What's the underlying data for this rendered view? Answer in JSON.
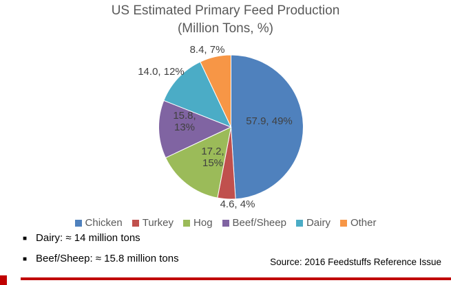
{
  "slide": {
    "title": "US Estimated Primary Feed Production",
    "subtitle": "(Million Tons, %)",
    "source": "Source: 2016 Feedstuffs Reference Issue",
    "accent_color": "#C00000"
  },
  "notes": [
    {
      "text": "Dairy: ≈ 14 million tons"
    },
    {
      "text": "Beef/Sheep: ≈ 15.8 million tons"
    }
  ],
  "chart_data": {
    "type": "pie",
    "title": "US Estimated Primary Feed Production",
    "subtitle": "(Million Tons, %)",
    "units": "Million Tons",
    "categories": [
      "Chicken",
      "Turkey",
      "Hog",
      "Beef/Sheep",
      "Dairy",
      "Other"
    ],
    "values": [
      57.9,
      4.6,
      17.2,
      15.8,
      14.0,
      8.4
    ],
    "percents": [
      49,
      4,
      15,
      13,
      12,
      7
    ],
    "labels": [
      "57.9, 49%",
      "4.6, 4%",
      "17.2, 15%",
      "15.8, 13%",
      "14.0, 12%",
      "8.4, 7%"
    ],
    "colors": [
      "#4F81BD",
      "#C0504D",
      "#9BBB59",
      "#8064A2",
      "#4BACC6",
      "#F79646"
    ],
    "label_color": "#404040",
    "legend_position": "bottom",
    "start_angle_deg": 0,
    "direction": "clockwise"
  }
}
